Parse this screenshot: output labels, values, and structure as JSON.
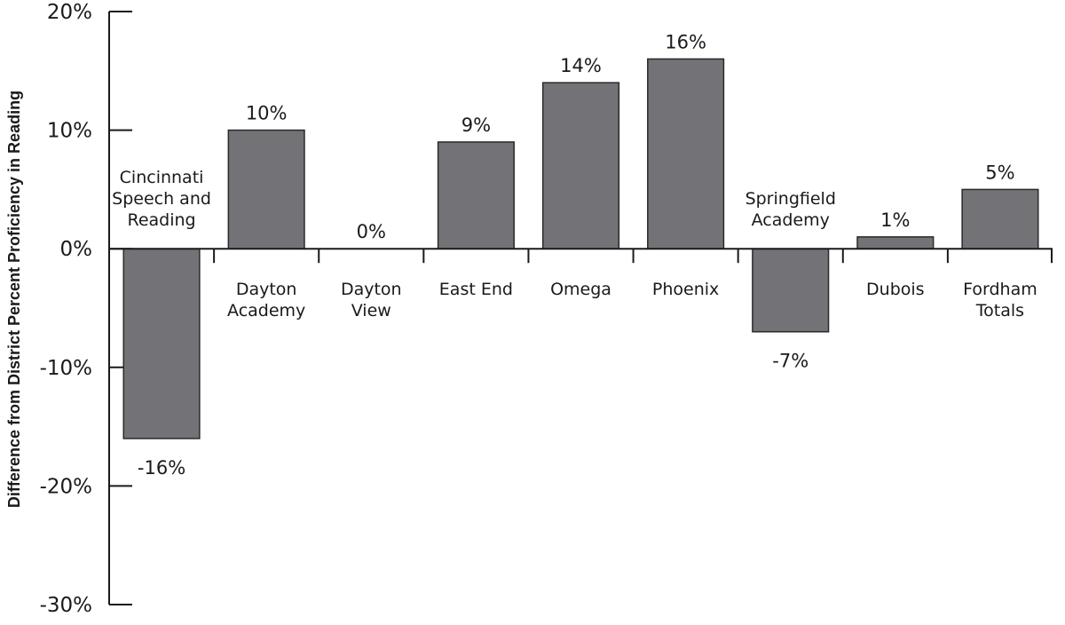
{
  "chart_data": {
    "type": "bar",
    "title": "",
    "xlabel": "",
    "ylabel": "Difference from District Percent Proficiency in Reading",
    "ylim": [
      -30,
      20
    ],
    "yticks": [
      20,
      10,
      0,
      -10,
      -20,
      -30
    ],
    "ytick_labels": [
      "20%",
      "10%",
      "0%",
      "-10%",
      "-20%",
      "-30%"
    ],
    "grid": false,
    "legend": "none",
    "bar_color": "#737377",
    "categories": [
      "Cincinnati Speech and Reading",
      "Dayton Academy",
      "Dayton View",
      "East End",
      "Omega",
      "Phoenix",
      "Springfield Academy",
      "Dubois",
      "Fordham Totals"
    ],
    "category_label_lines": [
      [
        "Cincinnati",
        "Speech and",
        "Reading"
      ],
      [
        "Dayton",
        "Academy"
      ],
      [
        "Dayton",
        "View"
      ],
      [
        "East End"
      ],
      [
        "Omega"
      ],
      [
        "Phoenix"
      ],
      [
        "Springfield",
        "Academy"
      ],
      [
        "Dubois"
      ],
      [
        "Fordham",
        "Totals"
      ]
    ],
    "values": [
      -16,
      10,
      0,
      9,
      14,
      16,
      -7,
      1,
      5
    ],
    "value_labels": [
      "-16%",
      "10%",
      "0%",
      "9%",
      "14%",
      "16%",
      "-7%",
      "1%",
      "5%"
    ]
  }
}
